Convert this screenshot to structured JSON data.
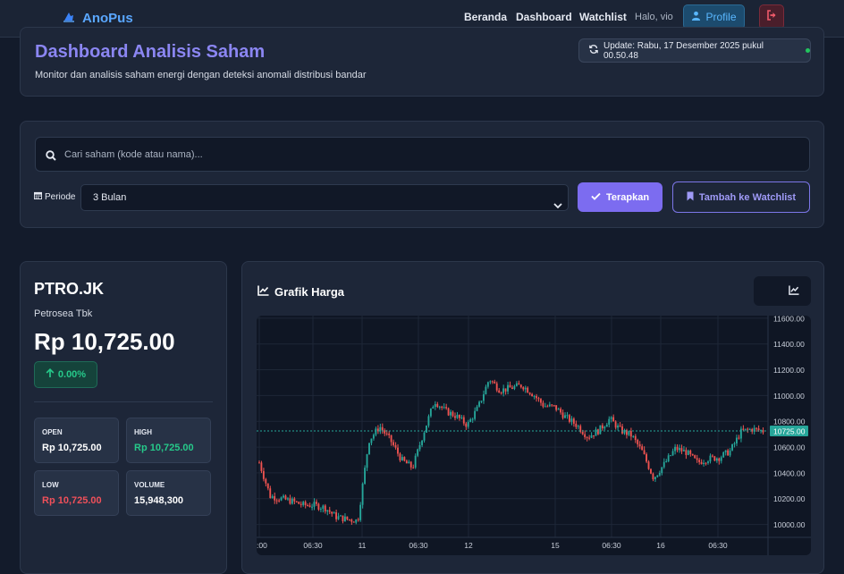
{
  "nav": {
    "brand": "AnoPus",
    "links": [
      "Beranda",
      "Dashboard",
      "Watchlist"
    ],
    "greeting": "Halo, vio",
    "profile_label": "Profile"
  },
  "header": {
    "title": "Dashboard Analisis Saham",
    "subtitle": "Monitor dan analisis saham energi dengan deteksi anomali distribusi bandar",
    "update_text": "Update: Rabu, 17 Desember 2025 pukul 00.50.48"
  },
  "search": {
    "placeholder": "Cari saham (kode atau nama)...",
    "periode_label": "Periode",
    "periode_value": "3 Bulan",
    "apply_label": "Terapkan",
    "watchlist_label": "Tambah ke Watchlist"
  },
  "stock": {
    "ticker": "PTRO.JK",
    "name": "Petrosea Tbk",
    "price": "Rp 10,725.00",
    "change": "0.00%",
    "stats": [
      {
        "label": "OPEN",
        "value": "Rp 10,725.00",
        "color": "#ffffff"
      },
      {
        "label": "HIGH",
        "value": "Rp 10,725.00",
        "color": "#26c98a"
      },
      {
        "label": "LOW",
        "value": "Rp 10,725.00",
        "color": "#f0505a"
      },
      {
        "label": "VOLUME",
        "value": "15,948,300",
        "color": "#ffffff"
      }
    ]
  },
  "chart": {
    "title": "Grafik Harga",
    "y_ticks": [
      "11600.00",
      "11400.00",
      "11200.00",
      "11000.00",
      "10800.00",
      "10600.00",
      "10400.00",
      "10200.00",
      "10000.00"
    ],
    "x_ticks": [
      ":00",
      "06:30",
      "11",
      "06:30",
      "12",
      "15",
      "06:30",
      "16",
      "06:30"
    ],
    "last_price_label": "10725.00",
    "colors": {
      "up": "#26a69a",
      "down": "#ef5350",
      "last": "#26a69a"
    }
  },
  "chart_data": {
    "type": "candlestick",
    "ylim": [
      9900,
      11620
    ],
    "last_price": 10725,
    "x_tick_labels": [
      ":00",
      "06:30",
      "11",
      "06:30",
      "12",
      "15",
      "06:30",
      "16",
      "06:30"
    ],
    "y_tick_labels": [
      "11600.00",
      "11400.00",
      "11200.00",
      "11000.00",
      "10800.00",
      "10600.00",
      "10400.00",
      "10200.00",
      "10000.00"
    ],
    "close_path": [
      10480,
      10220,
      10200,
      10180,
      10150,
      10150,
      10130,
      10060,
      10040,
      10030,
      10650,
      10760,
      10650,
      10500,
      10440,
      10710,
      10960,
      10880,
      10840,
      10770,
      10910,
      11130,
      11040,
      11060,
      11080,
      11010,
      10920,
      10910,
      10830,
      10770,
      10680,
      10730,
      10820,
      10730,
      10690,
      10560,
      10360,
      10470,
      10590,
      10560,
      10480,
      10510,
      10520,
      10570,
      10720,
      10740,
      10725
    ]
  }
}
